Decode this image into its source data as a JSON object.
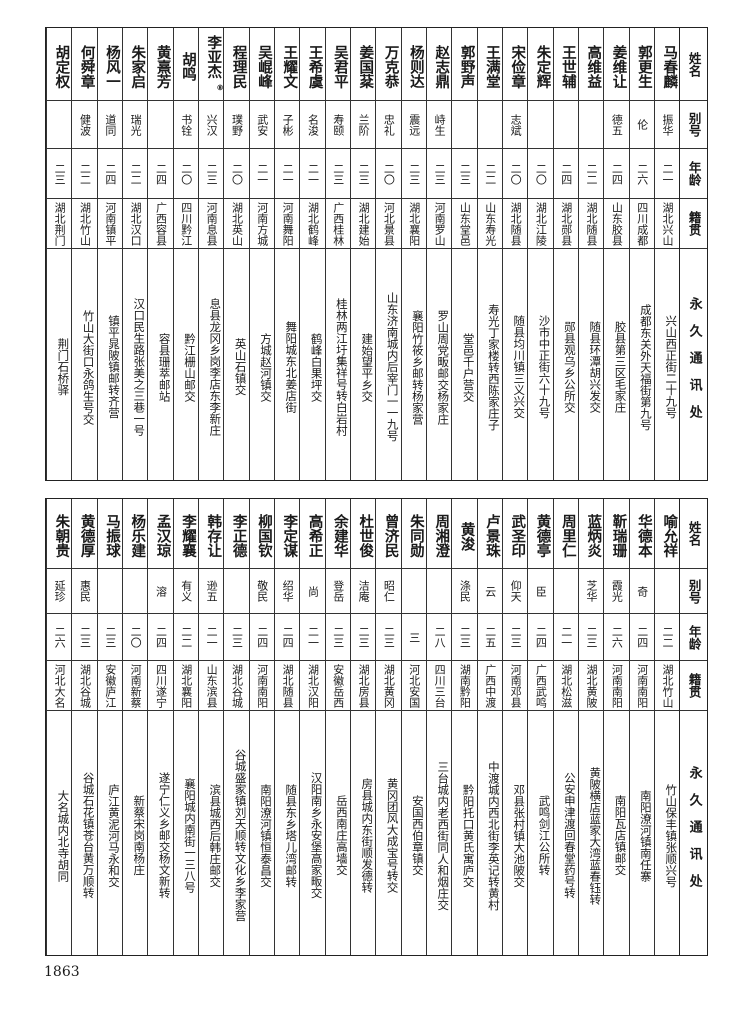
{
  "headers": {
    "name": "姓名",
    "alias": "别号",
    "age": "年龄",
    "origin": "籍贯",
    "address": "永久通讯处"
  },
  "top_table": [
    {
      "name": "马春麟",
      "alias": "振华",
      "age": "二一",
      "origin": "湖北兴山",
      "address": "兴山西正街二十九号"
    },
    {
      "name": "郭更生",
      "alias": "伦",
      "age": "二六",
      "origin": "四川成都",
      "address": "成都东关外天福街第九号"
    },
    {
      "name": "姜维让",
      "alias": "德五",
      "age": "二四",
      "origin": "山东胶县",
      "address": "胶县第三区毛家庄"
    },
    {
      "name": "高维益",
      "alias": "",
      "age": "二二",
      "origin": "湖北随县",
      "address": "随县环潭胡兴发交"
    },
    {
      "name": "王世辅",
      "alias": "",
      "age": "二四",
      "origin": "湖北郧县",
      "address": "郧县观乌乡公所交"
    },
    {
      "name": "朱定辉",
      "alias": "",
      "age": "二〇",
      "origin": "湖北江陵",
      "address": "沙市中正街六十九号"
    },
    {
      "name": "宋俭章",
      "alias": "志斌",
      "age": "二〇",
      "origin": "湖北随县",
      "address": "随县均川镇三义兴交"
    },
    {
      "name": "王满堂",
      "alias": "",
      "age": "二二",
      "origin": "山东寿光",
      "address": "寿光丁家楼转西陈家庄子"
    },
    {
      "name": "郭野声",
      "alias": "",
      "age": "二三",
      "origin": "山东堂邑",
      "address": "堂邑千户营交"
    },
    {
      "name": "赵志鼎",
      "alias": "峙生",
      "age": "二三",
      "origin": "河南罗山",
      "address": "罗山周党畈邮交杨家庄"
    },
    {
      "name": "杨则达",
      "alias": "震远",
      "age": "二三",
      "origin": "湖北襄阳",
      "address": "襄阳竹筱乡邮转杨家营"
    },
    {
      "name": "万克恭",
      "alias": "忠礼",
      "age": "二〇",
      "origin": "河北景县",
      "address": "山东济南城内后宰门一一九号"
    },
    {
      "name": "姜国棻",
      "alias": "兰阶",
      "age": "二三",
      "origin": "湖北建始",
      "address": "建始望平乡交"
    },
    {
      "name": "吴君平",
      "alias": "寿颐",
      "age": "二三",
      "origin": "广西桂林",
      "address": "桂林两江圩集祥号转白岩村"
    },
    {
      "name": "王希虞",
      "alias": "名浚",
      "age": "二一",
      "origin": "湖北鹤峰",
      "address": "鹤峰白果坪交"
    },
    {
      "name": "王耀文",
      "alias": "子彬",
      "age": "二一",
      "origin": "河南舞阳",
      "address": "舞阳城东北姜店街"
    },
    {
      "name": "吴崐峰",
      "alias": "武安",
      "age": "二一",
      "origin": "河南方城",
      "address": "方城赵河镇交"
    },
    {
      "name": "程理民",
      "alias": "璞野",
      "age": "二〇",
      "origin": "湖北英山",
      "address": "英山石镇交"
    },
    {
      "name": "李亚杰",
      "note": "⑧",
      "alias": "兴汉",
      "age": "二三",
      "origin": "河南息县",
      "address": "息县龙冈乡岗李店东李新庄"
    },
    {
      "name": "胡鸣",
      "alias": "书铨",
      "age": "二〇",
      "origin": "四川黔江",
      "address": "黔江栅山邮交"
    },
    {
      "name": "黄熹芳",
      "alias": "",
      "age": "二四",
      "origin": "广西容县",
      "address": "容县珊萃邮站"
    },
    {
      "name": "朱家启",
      "alias": "瑞光",
      "age": "二二",
      "origin": "湖北汉口",
      "address": "汉口民生路张美之三巷一号"
    },
    {
      "name": "杨风一",
      "alias": "道同",
      "age": "二四",
      "origin": "河南镇平",
      "address": "镇平晁陂镇邮转齐营"
    },
    {
      "name": "何舜章",
      "alias": "健波",
      "age": "二二",
      "origin": "湖北竹山",
      "address": "竹山大街口永鸽生号交"
    },
    {
      "name": "胡定权",
      "alias": "",
      "age": "二三",
      "origin": "湖北荆门",
      "address": "荆门石桥驿"
    }
  ],
  "bottom_table": [
    {
      "name": "喻允祥",
      "alias": "",
      "age": "二二",
      "origin": "湖北竹山",
      "address": "竹山保丰镇张顺兴号"
    },
    {
      "name": "华德本",
      "alias": "奇",
      "age": "二四",
      "origin": "河南南阳",
      "address": "南阳潦河镇南任寨"
    },
    {
      "name": "靳瑞珊",
      "alias": "霞光",
      "age": "二六",
      "origin": "河南南阳",
      "address": "南阳瓦店镇邮交"
    },
    {
      "name": "蓝炳炎",
      "alias": "芝华",
      "age": "二三",
      "origin": "湖北黄陂",
      "address": "黄陂横店蓝家大湾蓝春钰转"
    },
    {
      "name": "周里仁",
      "alias": "",
      "age": "二一",
      "origin": "湖北松滋",
      "address": "公安申津渡回春堂药号转"
    },
    {
      "name": "黄德亭",
      "alias": "臣",
      "age": "二四",
      "origin": "广西武鸣",
      "address": "武鸣剑江公所转"
    },
    {
      "name": "武圣印",
      "alias": "仰天",
      "age": "二三",
      "origin": "河南邓县",
      "address": "邓县张村镇大池陂交"
    },
    {
      "name": "卢景珠",
      "alias": "云",
      "age": "二五",
      "origin": "广西中渡",
      "address": "中渡城内西北街李英记转黄村"
    },
    {
      "name": "黄浚",
      "alias": "涤民",
      "age": "二三",
      "origin": "湖南黔阳",
      "address": "黔阳托口黄氏寓庐交"
    },
    {
      "name": "周湘澄",
      "alias": "",
      "age": "二八",
      "origin": "四川三台",
      "address": "三台城内老西街同人和烟庄交"
    },
    {
      "name": "朱同勋",
      "alias": "",
      "age": "三",
      "origin": "河北安国",
      "address": "安国西伯章镇交"
    },
    {
      "name": "曾济民",
      "alias": "昭仁",
      "age": "二三",
      "origin": "湖北黄冈",
      "address": "黄冈团风大成宝号转交"
    },
    {
      "name": "杜世俊",
      "alias": "洁庵",
      "age": "二三",
      "origin": "湖北房县",
      "address": "房县城内东街顺发德转"
    },
    {
      "name": "余建华",
      "alias": "登岳",
      "age": "二三",
      "origin": "安徽岳西",
      "address": "岳西南庄高墙交"
    },
    {
      "name": "高希正",
      "alias": "尚",
      "age": "二一",
      "origin": "湖北汉阳",
      "address": "汉阳南乡永安堡高家畈交"
    },
    {
      "name": "李定谋",
      "alias": "绍华",
      "age": "二四",
      "origin": "湖北随县",
      "address": "随县东乡塔儿湾邮转"
    },
    {
      "name": "柳国钦",
      "alias": "敬民",
      "age": "二四",
      "origin": "河南南阳",
      "address": "南阳潦河镇恒泰昌交"
    },
    {
      "name": "李正德",
      "alias": "",
      "age": "二三",
      "origin": "湖北谷城",
      "address": "谷城盛家镇刘天顺转文化乡李家营"
    },
    {
      "name": "韩存让",
      "alias": "逊五",
      "age": "二一",
      "origin": "山东滨县",
      "address": "滨县城西后韩庄邮交"
    },
    {
      "name": "李耀襄",
      "alias": "有义",
      "age": "二二",
      "origin": "湖北襄阳",
      "address": "襄阳城内南街一三八号"
    },
    {
      "name": "孟汉琼",
      "alias": "溶",
      "age": "二四",
      "origin": "四川遂宁",
      "address": "遂宁仁义乡邮交杨文新转"
    },
    {
      "name": "杨乐建",
      "alias": "",
      "age": "二〇",
      "origin": "河南新蔡",
      "address": "新蔡宋岗南杨庄"
    },
    {
      "name": "马振球",
      "alias": "",
      "age": "二三",
      "origin": "安徽庐江",
      "address": "庐江黄泥河马永和交"
    },
    {
      "name": "黄德厚",
      "alias": "惠民",
      "age": "二三",
      "origin": "湖北谷城",
      "address": "谷城石花镇苍台黄万顺转"
    },
    {
      "name": "朱朝贵",
      "alias": "延珍",
      "age": "二六",
      "origin": "河北大名",
      "address": "大名城内北寺胡同"
    }
  ],
  "page_number": "1863"
}
